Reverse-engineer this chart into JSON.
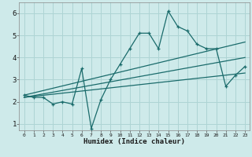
{
  "title": "",
  "xlabel": "Humidex (Indice chaleur)",
  "ylabel": "",
  "bg_color": "#ceeaea",
  "grid_color": "#aed4d4",
  "line_color": "#1a6b6b",
  "xlim": [
    -0.5,
    23.5
  ],
  "ylim": [
    0.7,
    6.5
  ],
  "xtick_vals": [
    0,
    1,
    2,
    3,
    4,
    5,
    6,
    7,
    8,
    9,
    10,
    11,
    12,
    13,
    14,
    15,
    16,
    17,
    18,
    19,
    20,
    21,
    22,
    23
  ],
  "xtick_labels": [
    "0",
    "1",
    "2",
    "3",
    "4",
    "5",
    "6",
    "7",
    "8",
    "9",
    "10",
    "11",
    "12",
    "13",
    "14",
    "15",
    "16",
    "17",
    "18",
    "19",
    "20",
    "21",
    "22",
    "23"
  ],
  "ytick_vals": [
    1,
    2,
    3,
    4,
    5,
    6
  ],
  "ytick_labels": [
    "1",
    "2",
    "3",
    "4",
    "5",
    "6"
  ],
  "series1_x": [
    0,
    1,
    2,
    3,
    4,
    5,
    6,
    7,
    8,
    9,
    10,
    11,
    12,
    13,
    14,
    15,
    16,
    17,
    18,
    19,
    20,
    21,
    22,
    23
  ],
  "series1_y": [
    2.3,
    2.2,
    2.2,
    1.9,
    2.0,
    1.9,
    3.5,
    0.8,
    2.1,
    3.0,
    3.7,
    4.4,
    5.1,
    5.1,
    4.4,
    6.1,
    5.4,
    5.2,
    4.6,
    4.4,
    4.4,
    2.7,
    3.2,
    3.6
  ],
  "series2_x": [
    0,
    23
  ],
  "series2_y": [
    2.3,
    4.7
  ],
  "series3_x": [
    0,
    23
  ],
  "series3_y": [
    2.2,
    4.0
  ],
  "series4_x": [
    0,
    23
  ],
  "series4_y": [
    2.2,
    3.3
  ]
}
